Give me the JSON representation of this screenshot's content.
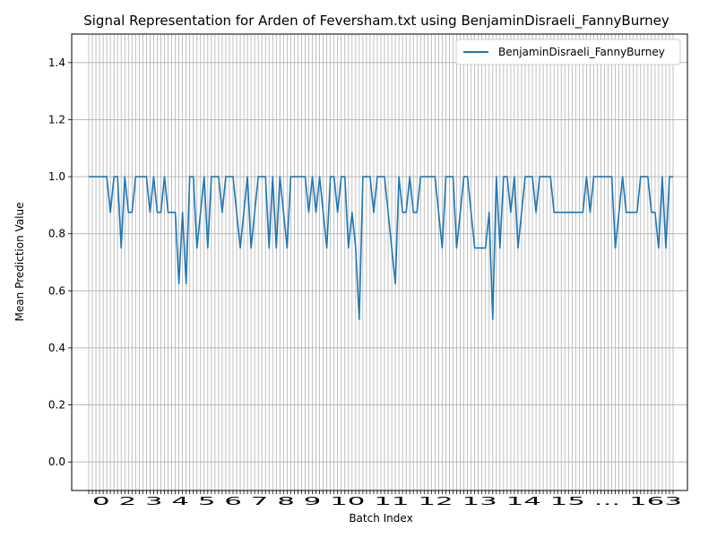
{
  "chart_data": {
    "type": "line",
    "title": "Signal Representation for Arden of Feversham.txt using BenjaminDisraeli_FannyBurney",
    "xlabel": "Batch Index",
    "ylabel": "Mean Prediction Value",
    "ylim": [
      -0.1,
      1.5
    ],
    "yticks": [
      "0.0",
      "0.2",
      "0.4",
      "0.6",
      "0.8",
      "1.0",
      "1.2",
      "1.4"
    ],
    "grid": true,
    "legend_position": "top-right",
    "x_tick_text": "0 2 3 4 5 6 7 8 9 10 11 12 13 14 15 ... 163",
    "series": [
      {
        "name": "BenjaminDisraeli_FannyBurney",
        "color": "#1f77b4",
        "values": [
          1,
          1,
          1,
          1,
          1,
          1,
          0.875,
          1,
          1,
          0.75,
          1,
          0.875,
          0.875,
          1,
          1,
          1,
          1,
          0.875,
          1,
          0.875,
          0.875,
          1,
          0.875,
          0.875,
          0.875,
          0.625,
          0.875,
          0.625,
          1,
          1,
          0.75,
          0.875,
          1,
          0.75,
          1,
          1,
          1,
          0.875,
          1,
          1,
          1,
          0.875,
          0.75,
          0.875,
          1,
          0.75,
          0.875,
          1,
          1,
          1,
          0.75,
          1,
          0.75,
          1,
          0.875,
          0.75,
          1,
          1,
          1,
          1,
          1,
          0.875,
          1,
          0.875,
          1,
          0.875,
          0.75,
          1,
          1,
          0.875,
          1,
          1,
          0.75,
          0.875,
          0.75,
          0.5,
          1,
          1,
          1,
          0.875,
          1,
          1,
          1,
          0.875,
          0.75,
          0.625,
          1,
          0.875,
          0.875,
          1,
          0.875,
          0.875,
          1,
          1,
          1,
          1,
          1,
          0.875,
          0.75,
          1,
          1,
          1,
          0.75,
          0.875,
          1,
          1,
          0.875,
          0.75,
          0.75,
          0.75,
          0.75,
          0.875,
          0.5,
          1,
          0.75,
          1,
          1,
          0.875,
          1,
          0.75,
          0.875,
          1,
          1,
          1,
          0.875,
          1,
          1,
          1,
          1,
          0.875,
          0.875,
          0.875,
          0.875,
          0.875,
          0.875,
          0.875,
          0.875,
          0.875,
          1,
          0.875,
          1,
          1,
          1,
          1,
          1,
          1,
          0.75,
          0.875,
          1,
          0.875,
          0.875,
          0.875,
          0.875,
          1,
          1,
          1,
          0.875,
          0.875,
          0.75,
          1,
          0.75,
          1,
          1
        ]
      }
    ]
  }
}
